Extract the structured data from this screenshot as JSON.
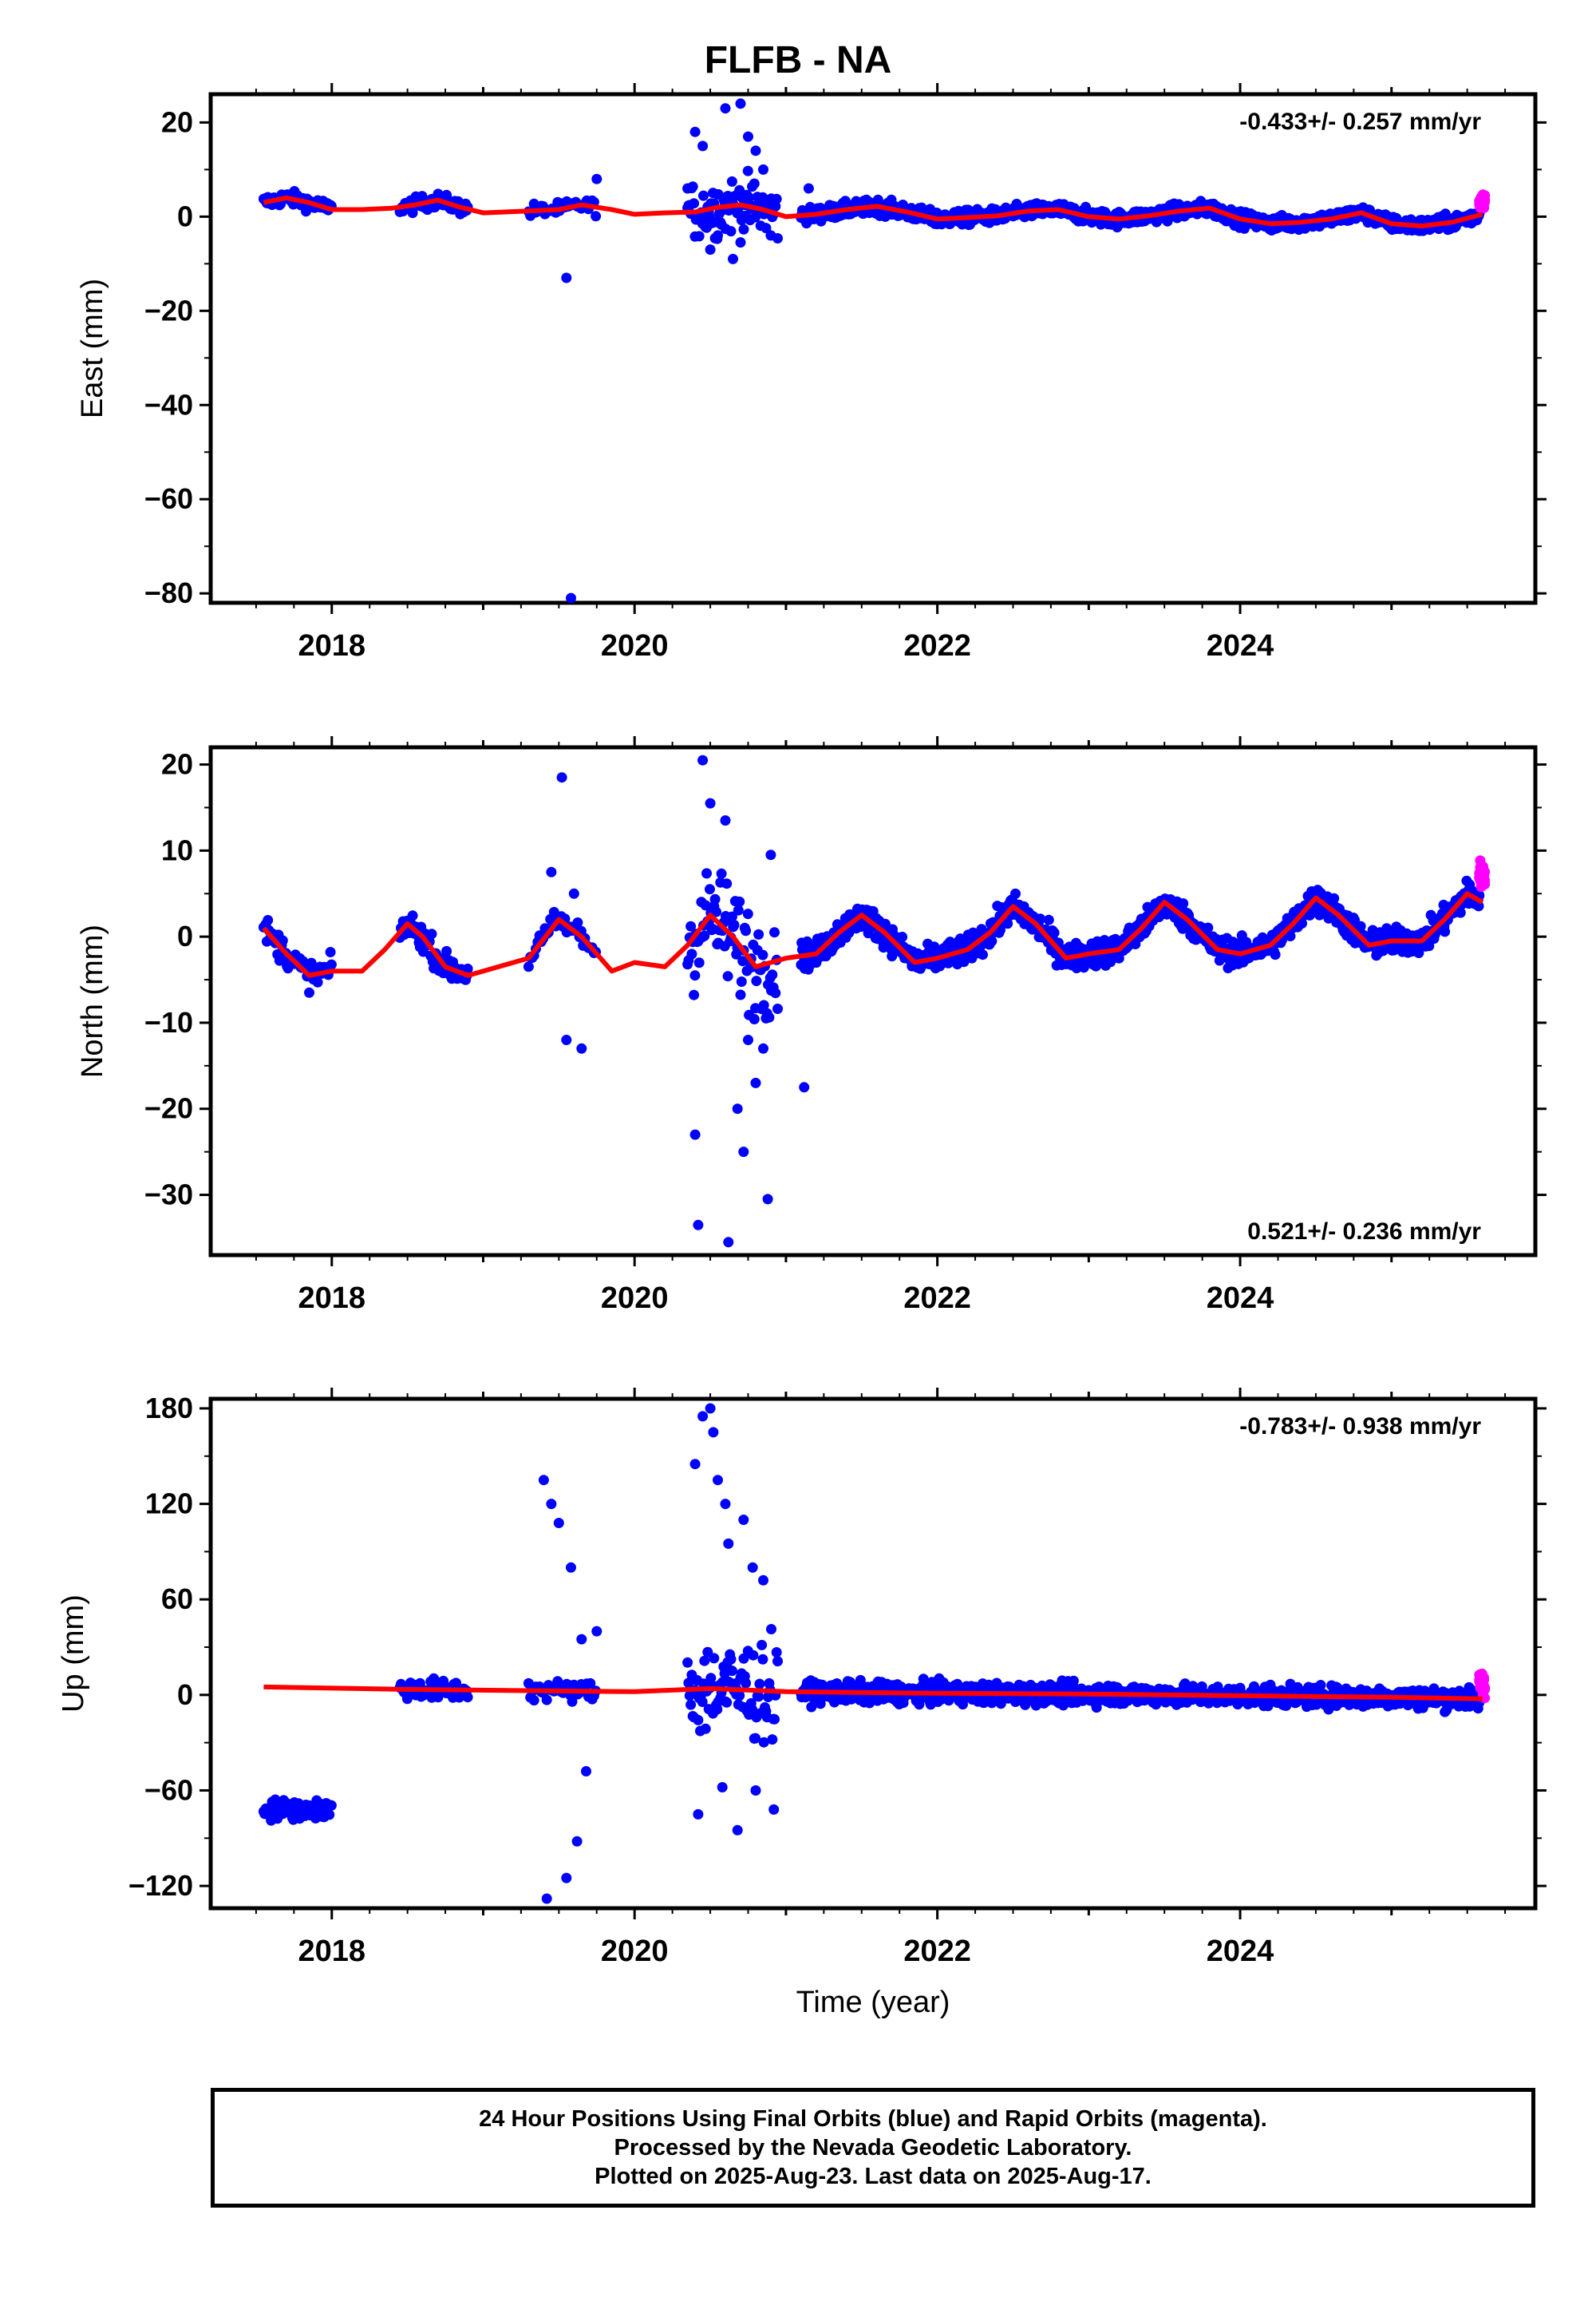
{
  "title": "FLFB - NA",
  "chart_data": [
    {
      "type": "scatter",
      "name": "east",
      "ylabel": "East (mm)",
      "xlabel": "",
      "xlim": [
        2017.2,
        2025.95
      ],
      "ylim": [
        -82,
        26
      ],
      "yticks": [
        20,
        0,
        -20,
        -40,
        -60,
        -80
      ],
      "xticks": [
        2018,
        2020,
        2022,
        2024
      ],
      "rate_label": "-0.433+/- 0.257 mm/yr",
      "rate_position": "top-right",
      "fit_curve": {
        "color": "#ff0000",
        "x": [
          2017.55,
          2017.7,
          2017.85,
          2018.0,
          2018.2,
          2018.4,
          2018.55,
          2018.7,
          2018.85,
          2019.0,
          2019.3,
          2019.5,
          2019.65,
          2019.85,
          2020.0,
          2020.2,
          2020.4,
          2020.55,
          2020.7,
          2020.85,
          2021.0,
          2021.2,
          2021.4,
          2021.6,
          2021.8,
          2022.0,
          2022.2,
          2022.4,
          2022.6,
          2022.8,
          2023.0,
          2023.2,
          2023.4,
          2023.6,
          2023.8,
          2024.0,
          2024.2,
          2024.4,
          2024.6,
          2024.8,
          2025.0,
          2025.2,
          2025.4,
          2025.6
        ],
        "y": [
          3,
          4,
          3,
          1.5,
          1.5,
          1.8,
          2.5,
          3.5,
          2,
          0.8,
          1.2,
          1.5,
          2.5,
          1.5,
          0.5,
          0.8,
          1,
          2,
          2.5,
          1.5,
          0,
          0.5,
          1.5,
          2.2,
          1,
          -0.5,
          -0.2,
          0.2,
          1.2,
          1.5,
          0,
          -0.5,
          0.2,
          1.2,
          1.8,
          -0.5,
          -1.5,
          -1.2,
          -0.5,
          0.8,
          -1.5,
          -2,
          -1.2,
          0.5
        ]
      },
      "outliers": {
        "x": [
          2019.58,
          2019.55,
          2020.4,
          2020.45,
          2020.6,
          2020.7,
          2020.75,
          2020.8,
          2020.85,
          2020.5,
          2020.55,
          2020.65,
          2019.75,
          2020.35,
          2020.9,
          2021.15
        ],
        "y": [
          -81,
          -13,
          18,
          15,
          23,
          24,
          17,
          14,
          10,
          -7,
          -4,
          -9,
          8,
          6,
          -4,
          6
        ]
      }
    },
    {
      "type": "scatter",
      "name": "north",
      "ylabel": "North (mm)",
      "xlabel": "",
      "xlim": [
        2017.2,
        2025.95
      ],
      "ylim": [
        -37,
        22
      ],
      "yticks": [
        20,
        10,
        0,
        -10,
        -20,
        -30
      ],
      "xticks": [
        2018,
        2020,
        2022,
        2024
      ],
      "rate_label": "0.521+/- 0.236 mm/yr",
      "rate_position": "bottom-right",
      "fit_curve": {
        "color": "#ff0000",
        "x": [
          2017.55,
          2017.7,
          2017.85,
          2018.0,
          2018.2,
          2018.35,
          2018.5,
          2018.6,
          2018.75,
          2018.9,
          2019.1,
          2019.3,
          2019.5,
          2019.65,
          2019.85,
          2020.0,
          2020.2,
          2020.35,
          2020.5,
          2020.65,
          2020.8,
          2021.0,
          2021.2,
          2021.35,
          2021.5,
          2021.65,
          2021.85,
          2022.0,
          2022.2,
          2022.35,
          2022.5,
          2022.65,
          2022.85,
          2023.0,
          2023.2,
          2023.35,
          2023.5,
          2023.65,
          2023.85,
          2024.0,
          2024.2,
          2024.35,
          2024.5,
          2024.65,
          2024.85,
          2025.0,
          2025.2,
          2025.35,
          2025.5,
          2025.6
        ],
        "y": [
          1,
          -2,
          -4.5,
          -4,
          -4,
          -1.5,
          1.5,
          0,
          -3.5,
          -4.5,
          -3.5,
          -2.5,
          2,
          0,
          -4,
          -3,
          -3.5,
          -1,
          2.5,
          0,
          -3.5,
          -2.5,
          -2,
          0.5,
          2.5,
          0.5,
          -3,
          -2.5,
          -1.5,
          0.5,
          3.5,
          1.5,
          -2.5,
          -2,
          -1.5,
          1,
          4,
          2,
          -1.5,
          -2,
          -1,
          1.5,
          4.5,
          2.5,
          -1,
          -0.5,
          -0.5,
          2,
          5,
          4
        ]
      },
      "outliers": {
        "x": [
          2019.45,
          2019.52,
          2019.6,
          2019.55,
          2019.65,
          2020.45,
          2020.4,
          2020.42,
          2020.5,
          2020.62,
          2020.68,
          2020.72,
          2020.8,
          2020.85,
          2020.88,
          2021.12,
          2020.6,
          2020.75,
          2020.9
        ],
        "y": [
          7.5,
          18.5,
          5,
          -12,
          -13,
          20.5,
          -23,
          -33.5,
          15.5,
          -35.5,
          -20,
          -25,
          -17,
          -13,
          -30.5,
          -17.5,
          13.5,
          -12,
          9.5
        ]
      }
    },
    {
      "type": "scatter",
      "name": "up",
      "ylabel": "Up (mm)",
      "xlabel": "Time (year)",
      "xlim": [
        2017.2,
        2025.95
      ],
      "ylim": [
        -134,
        186
      ],
      "yticks": [
        180,
        120,
        60,
        0,
        -60,
        -120
      ],
      "xticks": [
        2018,
        2020,
        2022,
        2024
      ],
      "rate_label": "-0.783+/- 0.938 mm/yr",
      "rate_position": "top-right",
      "fit_curve": {
        "color": "#ff0000",
        "x": [
          2017.55,
          2018.5,
          2019.5,
          2020.0,
          2020.5,
          2021.0,
          2022.0,
          2023.0,
          2024.0,
          2025.0,
          2025.6
        ],
        "y": [
          5,
          3.5,
          2.5,
          2,
          4,
          2,
          1,
          0.5,
          -0.5,
          -1.5,
          -2.5
        ]
      },
      "outliers": {
        "x": [
          2019.4,
          2019.45,
          2019.5,
          2019.58,
          2019.62,
          2019.68,
          2019.75,
          2019.55,
          2020.4,
          2020.45,
          2020.5,
          2020.55,
          2020.52,
          2020.62,
          2020.6,
          2020.68,
          2020.72,
          2020.78,
          2020.85,
          2020.42,
          2020.58,
          2019.65,
          2019.42,
          2020.8,
          2020.92
        ],
        "y": [
          135,
          120,
          108,
          80,
          -92,
          -48,
          40,
          -115,
          145,
          175,
          180,
          135,
          165,
          95,
          120,
          -85,
          110,
          80,
          72,
          -75,
          -58,
          35,
          -128,
          -60,
          -72
        ]
      }
    }
  ],
  "caption": {
    "line1": "24 Hour Positions Using Final Orbits (blue) and Rapid Orbits (magenta).",
    "line2": "Processed by the Nevada Geodetic Laboratory.",
    "line3": "Plotted on 2025-Aug-23. Last data on 2025-Aug-17."
  },
  "colors": {
    "final_orbits": "#0000ff",
    "rapid_orbits": "#ff00ff",
    "fit": "#ff0000",
    "frame": "#000000"
  }
}
